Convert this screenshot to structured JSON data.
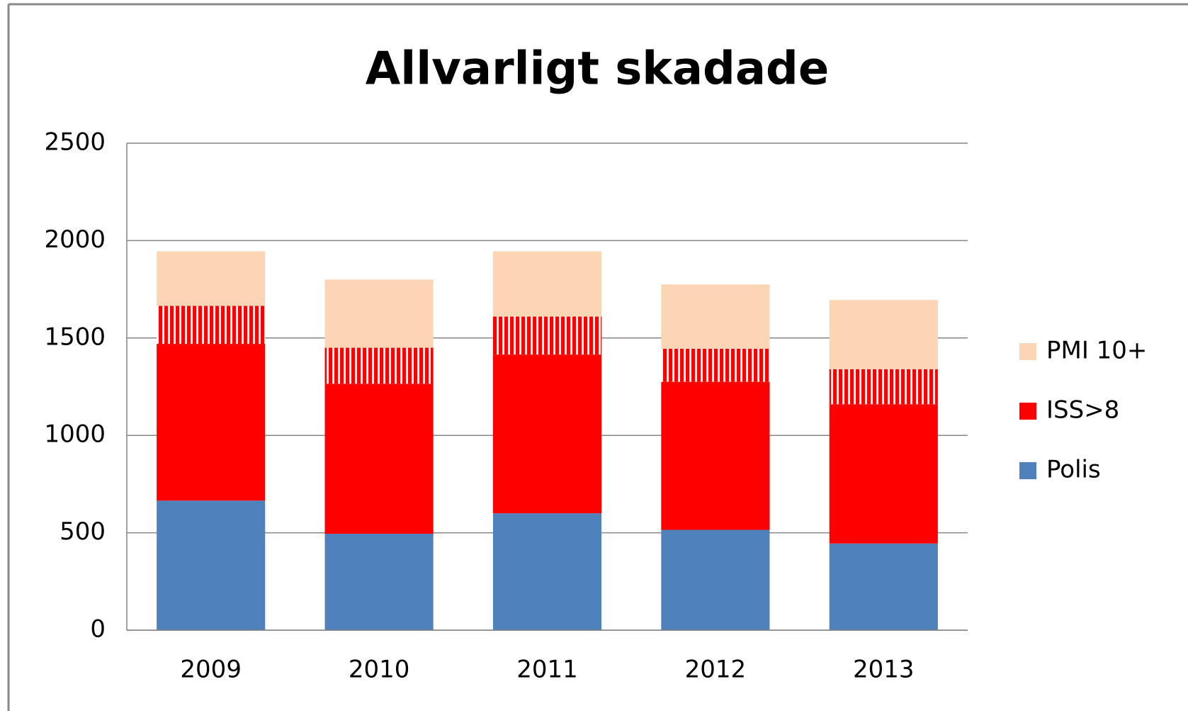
{
  "chart_data": {
    "type": "bar",
    "stacked": true,
    "title": "Allvarligt skadade",
    "categories": [
      "2009",
      "2010",
      "2011",
      "2012",
      "2013"
    ],
    "series": [
      {
        "name": "Polis",
        "color": "#4f81bd",
        "values": [
          665,
          495,
          600,
          515,
          445
        ]
      },
      {
        "name": "ISS>8",
        "color": "#ff0000",
        "values": [
          805,
          770,
          815,
          760,
          715
        ]
      },
      {
        "name": null,
        "color": "#ff0000",
        "pattern": "vertical-stripes",
        "values": [
          195,
          185,
          195,
          170,
          180
        ]
      },
      {
        "name": "PMI 10+",
        "color": "#fcd5b5",
        "values": [
          280,
          350,
          335,
          330,
          355
        ]
      }
    ],
    "ylim": [
      0,
      2500
    ],
    "yticks": [
      0,
      500,
      1000,
      1500,
      2000,
      2500
    ],
    "grid": true,
    "legend": "right"
  }
}
